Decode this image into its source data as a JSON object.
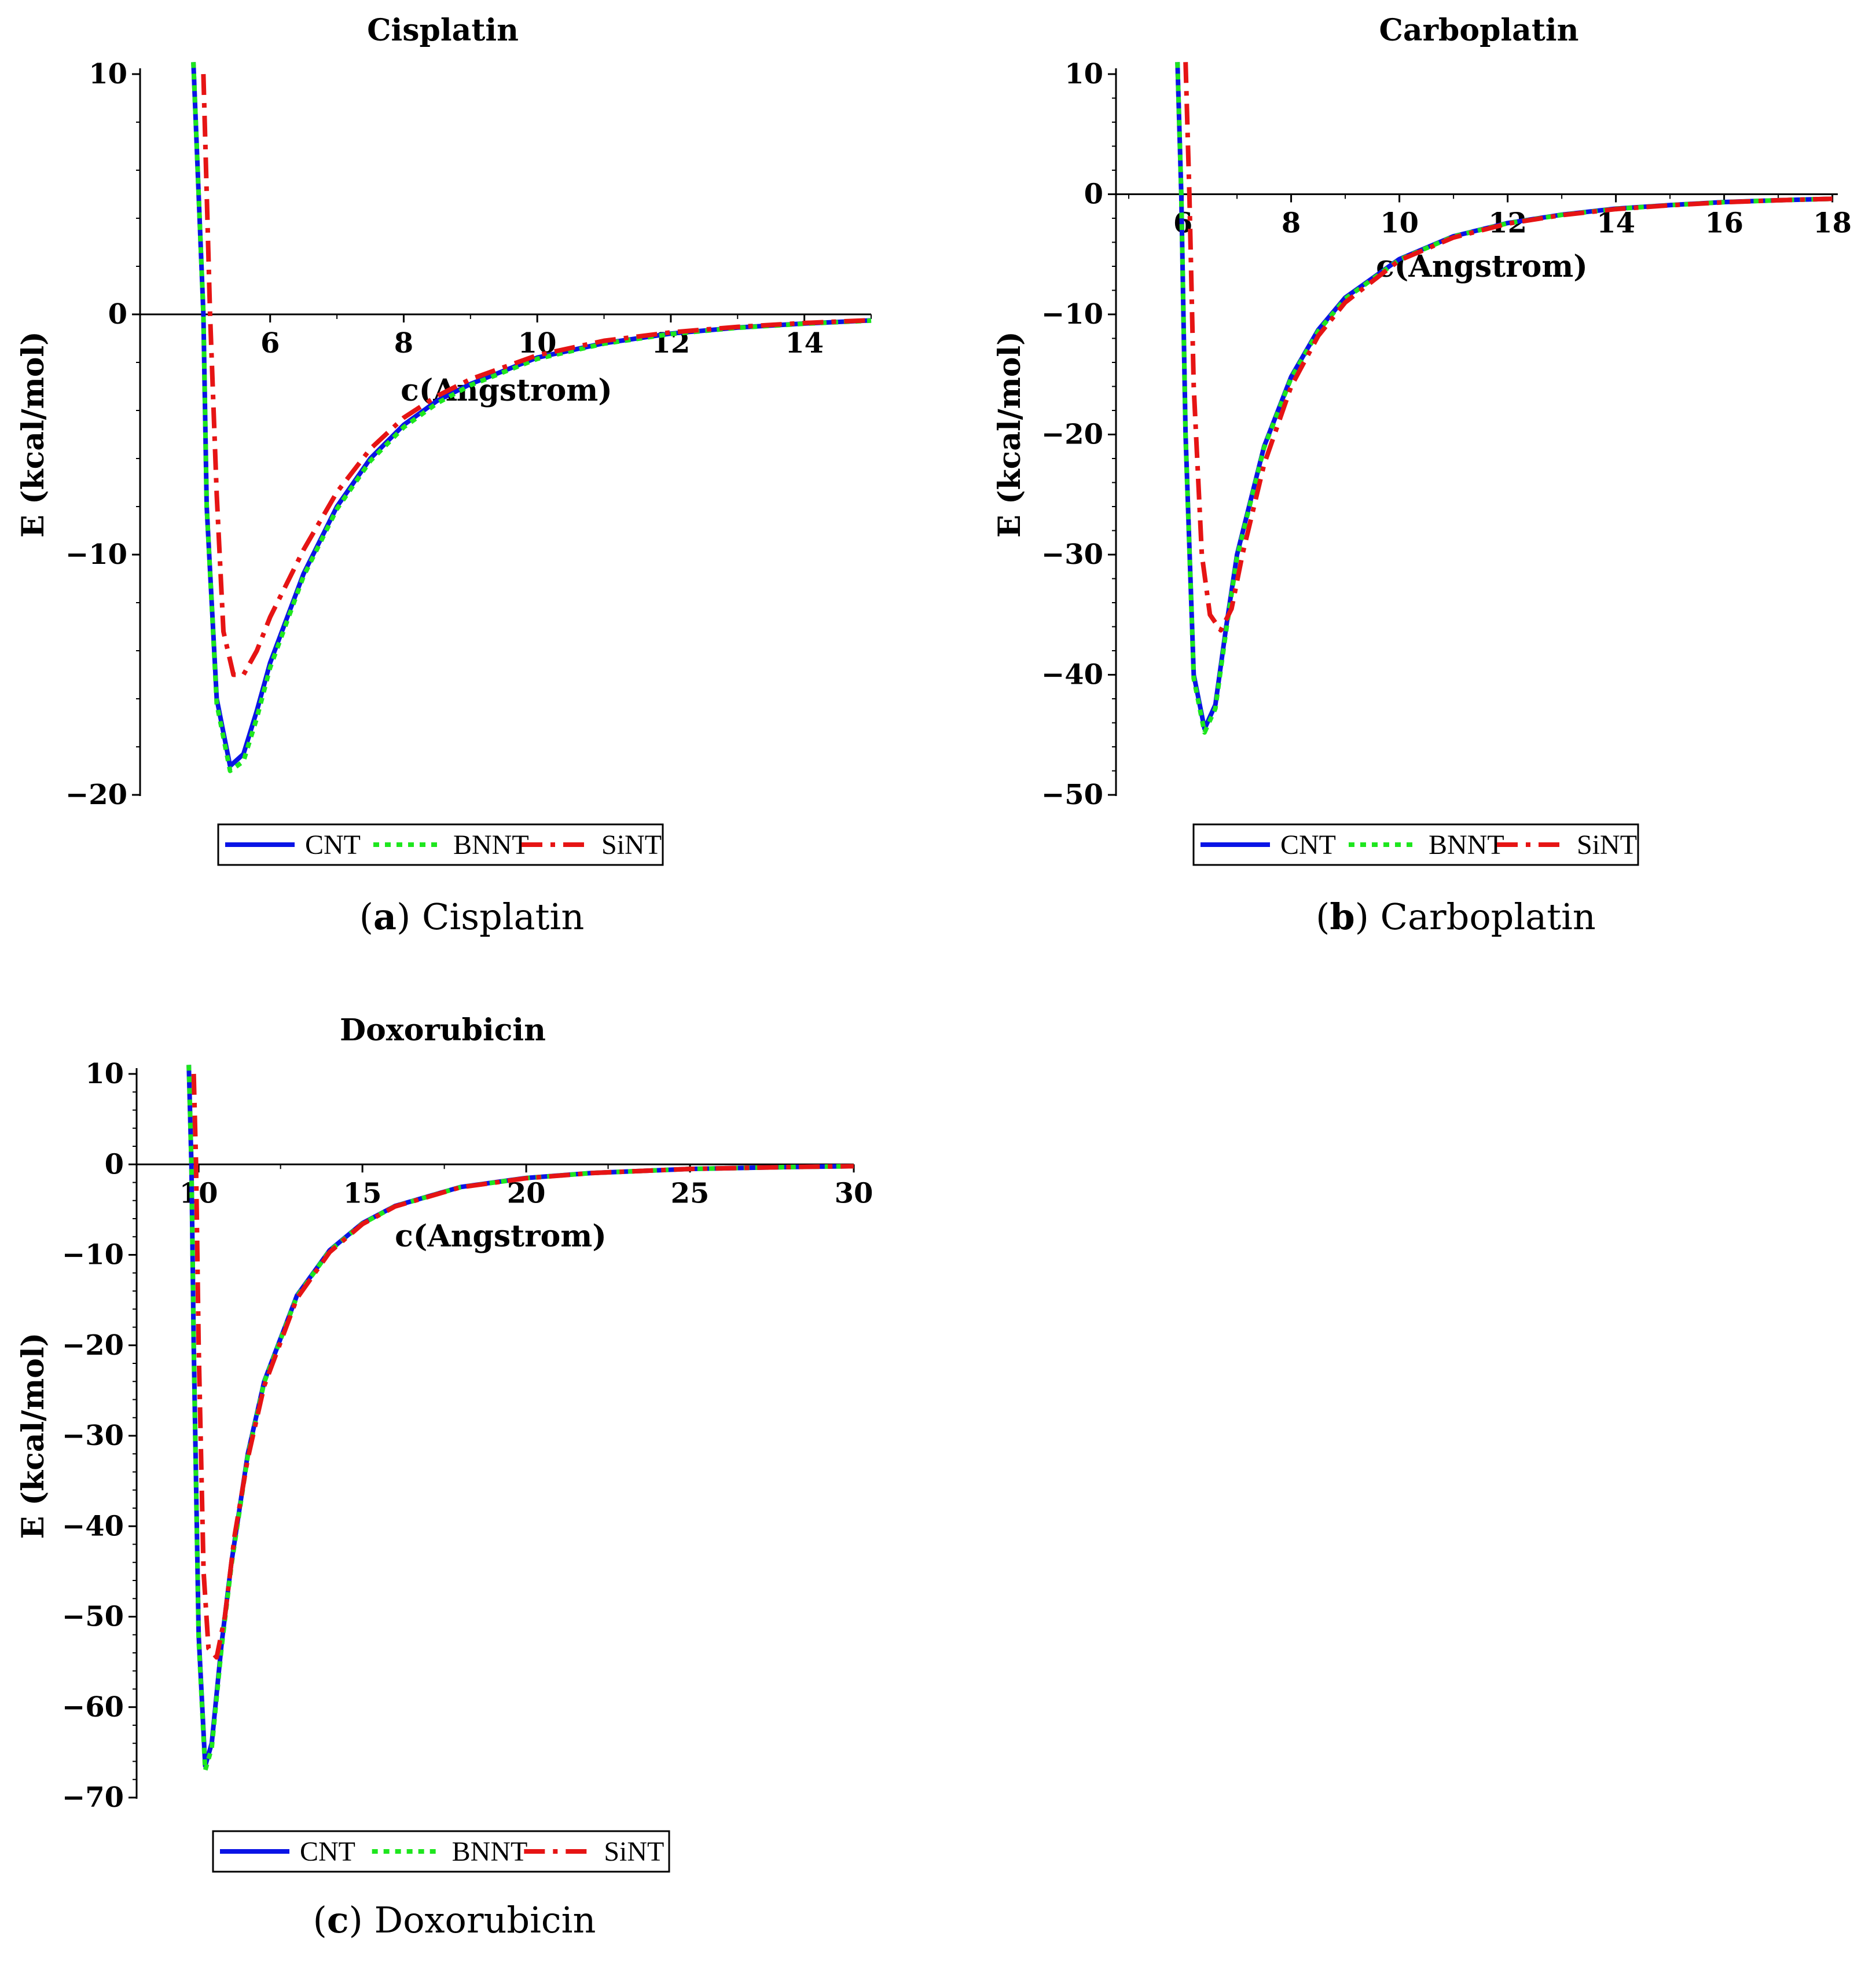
{
  "colors": {
    "CNT": "#0a14e6",
    "BNNT": "#1ee61e",
    "SiNT": "#e61414",
    "axis": "#000000"
  },
  "chart_data": [
    {
      "type": "line",
      "title": "Cisplatin",
      "caption_letter": "a",
      "caption_text": "Cisplatin",
      "xlabel": "c(Angstrom)",
      "ylabel": "E (kcal/mol)",
      "xlim": [
        4,
        15
      ],
      "ylim": [
        -20,
        10
      ],
      "xticks": [
        6,
        8,
        10,
        12,
        14
      ],
      "yticks": [
        10,
        0,
        -10,
        -20
      ],
      "ytick_labels": [
        "10",
        "0",
        "−10",
        "−20"
      ],
      "legend": [
        "CNT",
        "BNNT",
        "SiNT"
      ],
      "series": [
        {
          "name": "CNT",
          "style": "solid",
          "x": [
            4.85,
            5.0,
            5.05,
            5.2,
            5.4,
            5.6,
            5.8,
            6.0,
            6.5,
            7.0,
            7.5,
            8.0,
            8.5,
            9.0,
            10.0,
            11.0,
            12.0,
            13.0,
            14.0,
            15.0
          ],
          "y": [
            10.5,
            0,
            -8.0,
            -16.0,
            -18.8,
            -18.3,
            -16.5,
            -14.5,
            -10.8,
            -8.0,
            -6.0,
            -4.6,
            -3.6,
            -2.9,
            -1.8,
            -1.2,
            -0.8,
            -0.55,
            -0.38,
            -0.25
          ]
        },
        {
          "name": "BNNT",
          "style": "dotted",
          "x": [
            4.85,
            5.0,
            5.05,
            5.2,
            5.4,
            5.6,
            5.8,
            6.0,
            6.5,
            7.0,
            7.5,
            8.0,
            8.5,
            9.0,
            10.0,
            11.0,
            12.0,
            13.0,
            14.0,
            15.0
          ],
          "y": [
            10.5,
            0,
            -8.0,
            -16.2,
            -19.0,
            -18.6,
            -16.8,
            -14.7,
            -10.9,
            -8.1,
            -6.1,
            -4.7,
            -3.7,
            -2.95,
            -1.85,
            -1.22,
            -0.82,
            -0.56,
            -0.39,
            -0.26
          ]
        },
        {
          "name": "SiNT",
          "style": "dashdot",
          "x": [
            5.0,
            5.1,
            5.2,
            5.3,
            5.45,
            5.6,
            5.8,
            6.0,
            6.5,
            7.0,
            7.5,
            8.0,
            8.5,
            9.0,
            10.0,
            11.0,
            12.0,
            13.0,
            14.0,
            15.0
          ],
          "y": [
            10.0,
            0,
            -7.5,
            -13.2,
            -15.0,
            -15.0,
            -14.0,
            -12.6,
            -9.8,
            -7.4,
            -5.6,
            -4.3,
            -3.4,
            -2.7,
            -1.7,
            -1.1,
            -0.75,
            -0.52,
            -0.36,
            -0.24
          ]
        }
      ]
    },
    {
      "type": "line",
      "title": "Carboplatin",
      "caption_letter": "b",
      "caption_text": "Carboplatin",
      "xlabel": "c(Angstrom)",
      "ylabel": "E (kcal/mol)",
      "xlim": [
        4.7,
        18.1
      ],
      "ylim": [
        -50,
        10
      ],
      "xticks": [
        6,
        8,
        10,
        12,
        14,
        16,
        18
      ],
      "yticks": [
        10,
        0,
        -10,
        -20,
        -30,
        -40,
        -50
      ],
      "ytick_labels": [
        "10",
        "0",
        "−10",
        "−20",
        "−30",
        "−40",
        "−50"
      ],
      "legend": [
        "CNT",
        "BNNT",
        "SiNT"
      ],
      "series": [
        {
          "name": "CNT",
          "style": "solid",
          "x": [
            5.9,
            5.97,
            6.05,
            6.2,
            6.4,
            6.6,
            6.8,
            7.0,
            7.5,
            8.0,
            8.5,
            9.0,
            10.0,
            11.0,
            12.0,
            13.0,
            14.0,
            15.0,
            16.0,
            17.0,
            18.0
          ],
          "y": [
            11.0,
            0,
            -20.0,
            -40.0,
            -44.5,
            -42.5,
            -36.0,
            -30.0,
            -21.0,
            -15.2,
            -11.3,
            -8.6,
            -5.4,
            -3.5,
            -2.4,
            -1.7,
            -1.2,
            -0.9,
            -0.65,
            -0.5,
            -0.38
          ]
        },
        {
          "name": "BNNT",
          "style": "dotted",
          "x": [
            5.9,
            5.97,
            6.05,
            6.2,
            6.4,
            6.6,
            6.8,
            7.0,
            7.5,
            8.0,
            8.5,
            9.0,
            10.0,
            11.0,
            12.0,
            13.0,
            14.0,
            15.0,
            16.0,
            17.0,
            18.0
          ],
          "y": [
            11.0,
            0,
            -20.2,
            -40.3,
            -44.8,
            -42.8,
            -36.3,
            -30.2,
            -21.1,
            -15.3,
            -11.4,
            -8.7,
            -5.45,
            -3.52,
            -2.42,
            -1.72,
            -1.22,
            -0.91,
            -0.66,
            -0.5,
            -0.38
          ]
        },
        {
          "name": "SiNT",
          "style": "dashdot",
          "x": [
            6.05,
            6.12,
            6.2,
            6.35,
            6.5,
            6.7,
            6.9,
            7.1,
            7.5,
            8.0,
            8.5,
            9.0,
            10.0,
            11.0,
            12.0,
            13.0,
            14.0,
            15.0,
            16.0,
            17.0,
            18.0
          ],
          "y": [
            11.0,
            0,
            -16.0,
            -30.0,
            -35.0,
            -36.3,
            -34.5,
            -30.0,
            -22.5,
            -16.0,
            -11.8,
            -9.0,
            -5.5,
            -3.6,
            -2.45,
            -1.74,
            -1.24,
            -0.92,
            -0.67,
            -0.5,
            -0.38
          ]
        }
      ]
    },
    {
      "type": "line",
      "title": "Doxorubicin",
      "caption_letter": "c",
      "caption_text": "Doxorubicin",
      "xlabel": "c(Angstrom)",
      "ylabel": "E (kcal/mol)",
      "xlim": [
        8,
        30
      ],
      "ylim": [
        -70,
        10
      ],
      "xticks": [
        10,
        15,
        20,
        25,
        30
      ],
      "yticks": [
        10,
        0,
        -10,
        -20,
        -30,
        -40,
        -50,
        -60,
        -70
      ],
      "ytick_labels": [
        "10",
        "0",
        "−10",
        "−20",
        "−30",
        "−40",
        "−50",
        "−60",
        "−70"
      ],
      "legend": [
        "CNT",
        "BNNT",
        "SiNT"
      ],
      "series": [
        {
          "name": "CNT",
          "style": "solid",
          "x": [
            9.7,
            9.78,
            9.85,
            10.0,
            10.2,
            10.4,
            10.7,
            11.0,
            11.5,
            12.0,
            13.0,
            14.0,
            15.0,
            16.0,
            18.0,
            20.0,
            22.0,
            25.0,
            28.0,
            30.0
          ],
          "y": [
            11.0,
            0,
            -20.0,
            -52.0,
            -66.5,
            -64.0,
            -53.0,
            -44.0,
            -32.0,
            -24.0,
            -14.5,
            -9.5,
            -6.5,
            -4.6,
            -2.5,
            -1.5,
            -0.95,
            -0.5,
            -0.3,
            -0.2
          ]
        },
        {
          "name": "BNNT",
          "style": "dotted",
          "x": [
            9.7,
            9.78,
            9.85,
            10.0,
            10.2,
            10.4,
            10.7,
            11.0,
            11.5,
            12.0,
            13.0,
            14.0,
            15.0,
            16.0,
            18.0,
            20.0,
            22.0,
            25.0,
            28.0,
            30.0
          ],
          "y": [
            11.0,
            0,
            -20.3,
            -52.5,
            -67.0,
            -64.5,
            -53.4,
            -44.3,
            -32.2,
            -24.1,
            -14.6,
            -9.55,
            -6.55,
            -4.62,
            -2.52,
            -1.52,
            -0.96,
            -0.5,
            -0.3,
            -0.2
          ]
        },
        {
          "name": "SiNT",
          "style": "dashdot",
          "x": [
            9.85,
            9.92,
            10.0,
            10.15,
            10.3,
            10.55,
            10.8,
            11.1,
            11.5,
            12.0,
            13.0,
            14.0,
            15.0,
            16.0,
            18.0,
            20.0,
            22.0,
            25.0,
            28.0,
            30.0
          ],
          "y": [
            10.0,
            0,
            -20.0,
            -45.0,
            -53.5,
            -54.5,
            -50.0,
            -41.0,
            -32.5,
            -24.5,
            -14.8,
            -9.7,
            -6.6,
            -4.65,
            -2.53,
            -1.53,
            -0.96,
            -0.5,
            -0.3,
            -0.2
          ]
        }
      ]
    }
  ]
}
